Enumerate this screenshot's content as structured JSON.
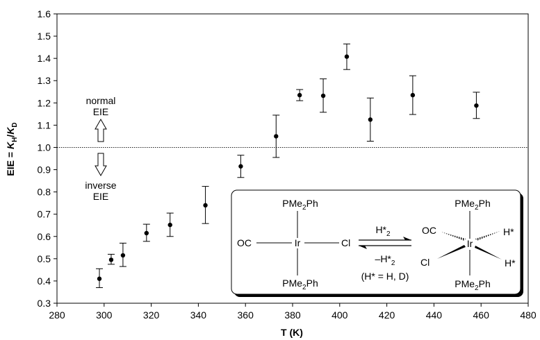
{
  "chart_data": {
    "type": "scatter",
    "title": "",
    "xlabel": "T (K)",
    "ylabel_parts": [
      "EIE = ",
      "K",
      "H",
      "/",
      "K",
      "D"
    ],
    "xlim": [
      280,
      480
    ],
    "ylim": [
      0.3,
      1.6
    ],
    "x_ticks": [
      "280",
      "300",
      "320",
      "340",
      "360",
      "380",
      "400",
      "420",
      "440",
      "460",
      "480"
    ],
    "y_ticks": [
      "0.3",
      "0.4",
      "0.5",
      "0.6",
      "0.7",
      "0.8",
      "0.9",
      "1.0",
      "1.1",
      "1.2",
      "1.3",
      "1.4",
      "1.5",
      "1.6"
    ],
    "reference_line": 1.0,
    "points": [
      {
        "x": 298,
        "y": 0.41,
        "err_low": 0.37,
        "err_high": 0.455
      },
      {
        "x": 303,
        "y": 0.495,
        "err_low": 0.475,
        "err_high": 0.52
      },
      {
        "x": 308,
        "y": 0.515,
        "err_low": 0.465,
        "err_high": 0.57
      },
      {
        "x": 318,
        "y": 0.615,
        "err_low": 0.578,
        "err_high": 0.655
      },
      {
        "x": 328,
        "y": 0.652,
        "err_low": 0.6,
        "err_high": 0.705
      },
      {
        "x": 343,
        "y": 0.74,
        "err_low": 0.658,
        "err_high": 0.825
      },
      {
        "x": 358,
        "y": 0.915,
        "err_low": 0.865,
        "err_high": 0.965
      },
      {
        "x": 373,
        "y": 1.05,
        "err_low": 0.955,
        "err_high": 1.145
      },
      {
        "x": 383,
        "y": 1.235,
        "err_low": 1.21,
        "err_high": 1.26
      },
      {
        "x": 393,
        "y": 1.232,
        "err_low": 1.158,
        "err_high": 1.308
      },
      {
        "x": 403,
        "y": 1.408,
        "err_low": 1.35,
        "err_high": 1.465
      },
      {
        "x": 413,
        "y": 1.125,
        "err_low": 1.028,
        "err_high": 1.222
      },
      {
        "x": 431,
        "y": 1.235,
        "err_low": 1.148,
        "err_high": 1.322
      },
      {
        "x": 458,
        "y": 1.188,
        "err_low": 1.13,
        "err_high": 1.248
      }
    ],
    "annotations": {
      "normal_line1": "normal",
      "normal_line2": "EIE",
      "inverse_line1": "inverse",
      "inverse_line2": "EIE"
    },
    "scheme": {
      "left_top_ligand": [
        "PMe",
        "2",
        "Ph"
      ],
      "left_bottom_ligand": [
        "PMe",
        "2",
        "Ph"
      ],
      "left_oc": "OC",
      "left_metal": "Ir",
      "left_cl": "Cl",
      "forward_reagent": [
        "H*",
        "2"
      ],
      "reverse_reagent": [
        "–H*",
        "2"
      ],
      "isotope_note": "(H* = H, D)",
      "right_top_ligand": [
        "PMe",
        "2",
        "Ph"
      ],
      "right_bottom_ligand": [
        "PMe",
        "2",
        "Ph"
      ],
      "right_oc": "OC",
      "right_metal": "Ir",
      "right_cl": "Cl",
      "right_h1": "H*",
      "right_h2": "H*"
    }
  }
}
